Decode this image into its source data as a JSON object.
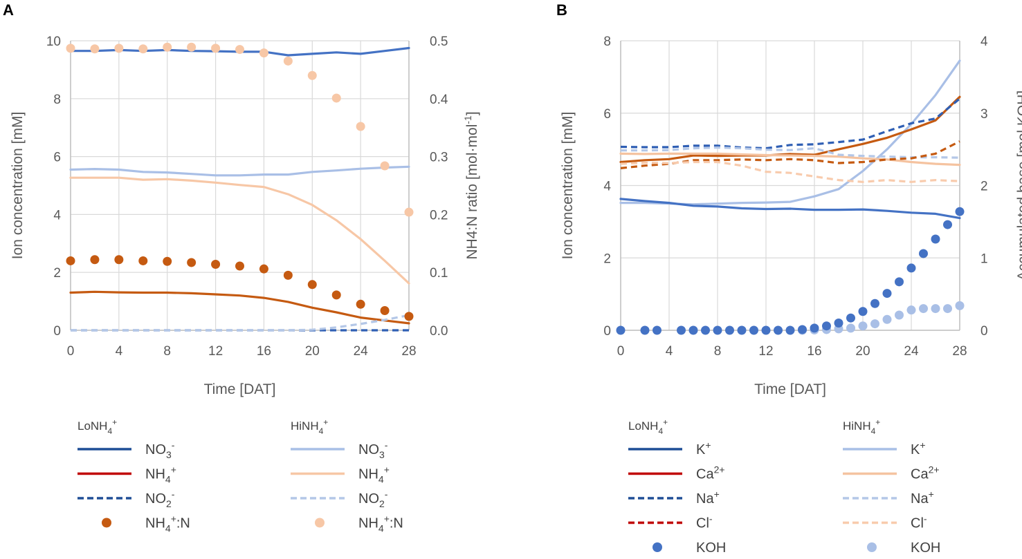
{
  "colors": {
    "lo_no3": "#4472C4",
    "hi_no3": "#A9BFE6",
    "lo_nh4": "#C55A11",
    "hi_nh4": "#F7C7A6",
    "lo_k": "#4472C4",
    "hi_k": "#A9BFE6",
    "lo_ca": "#C55A11",
    "hi_ca": "#F5C3A0",
    "lo_na": "#2F5FB4",
    "hi_na": "#B4C7E7",
    "lo_cl": "#C55A11",
    "hi_cl": "#F8CBAD",
    "leg_lo_no3": "#1F4E96",
    "leg_lo_nh4": "#C00000",
    "leg_lo_no2": "#1F4E96",
    "leg_lo_ratio": "#C55A11",
    "leg_lo_k": "#1F4E96",
    "leg_lo_ca": "#C00000",
    "leg_lo_na": "#1F4E96",
    "leg_lo_cl": "#C00000",
    "leg_lo_koh": "#4472C4",
    "grid": "#D9D9D9",
    "axis": "#BFBFBF"
  },
  "chart_data": [
    {
      "panel": "A",
      "type": "line",
      "xlabel": "Time [DAT]",
      "ylabel": "Ion concentration [mM]",
      "y2label_main": "NH4:N ratio [mol·mol",
      "y2label_sup": "-1",
      "y2label_end": "]",
      "xlim": [
        0,
        28
      ],
      "ylim": [
        0,
        10
      ],
      "y2lim": [
        0,
        0.5
      ],
      "xticks": [
        "0",
        "4",
        "8",
        "12",
        "16",
        "20",
        "24",
        "28"
      ],
      "yticks": [
        "0",
        "2",
        "4",
        "6",
        "8",
        "10"
      ],
      "y2ticks": [
        "0.0",
        "0.1",
        "0.2",
        "0.3",
        "0.4",
        "0.5"
      ],
      "series": [
        {
          "name": "LoNH4+ NO3-",
          "axis": "y",
          "style": "solid",
          "color_key": "lo_no3",
          "x": [
            0,
            2,
            4,
            6,
            8,
            10,
            12,
            14,
            16,
            18,
            20,
            22,
            24,
            26,
            28
          ],
          "y": [
            9.65,
            9.65,
            9.68,
            9.65,
            9.68,
            9.65,
            9.64,
            9.62,
            9.62,
            9.5,
            9.55,
            9.6,
            9.55,
            9.65,
            9.75
          ]
        },
        {
          "name": "HiNH4+ NO3-",
          "axis": "y",
          "style": "solid",
          "color_key": "hi_no3",
          "x": [
            0,
            2,
            4,
            6,
            8,
            10,
            12,
            14,
            16,
            18,
            20,
            22,
            24,
            26,
            28
          ],
          "y": [
            5.55,
            5.57,
            5.55,
            5.47,
            5.45,
            5.4,
            5.35,
            5.35,
            5.38,
            5.38,
            5.47,
            5.52,
            5.58,
            5.62,
            5.65
          ]
        },
        {
          "name": "HiNH4+ NH4+",
          "axis": "y",
          "style": "solid",
          "color_key": "hi_nh4",
          "x": [
            0,
            2,
            4,
            6,
            8,
            10,
            12,
            14,
            16,
            18,
            20,
            22,
            24,
            26,
            28
          ],
          "y": [
            5.27,
            5.27,
            5.27,
            5.2,
            5.22,
            5.17,
            5.1,
            5.02,
            4.95,
            4.7,
            4.33,
            3.8,
            3.15,
            2.4,
            1.62
          ]
        },
        {
          "name": "LoNH4+ NH4+",
          "axis": "y",
          "style": "solid",
          "color_key": "lo_nh4",
          "x": [
            0,
            2,
            4,
            6,
            8,
            10,
            12,
            14,
            16,
            18,
            20,
            22,
            24,
            26,
            28
          ],
          "y": [
            1.3,
            1.33,
            1.31,
            1.3,
            1.3,
            1.28,
            1.24,
            1.2,
            1.12,
            0.98,
            0.78,
            0.62,
            0.44,
            0.34,
            0.24
          ]
        },
        {
          "name": "LoNH4+ NO2-",
          "axis": "y",
          "style": "dashed",
          "color_key": "lo_na",
          "x": [
            0,
            4,
            8,
            12,
            16,
            20,
            24,
            28
          ],
          "y": [
            0,
            0,
            0,
            0,
            0,
            0,
            0,
            0
          ]
        },
        {
          "name": "HiNH4+ NO2-",
          "axis": "y",
          "style": "dashed",
          "color_key": "hi_na",
          "x": [
            0,
            4,
            8,
            12,
            16,
            18,
            20,
            22,
            24,
            26,
            28
          ],
          "y": [
            0,
            0,
            0,
            0,
            0,
            0,
            0.02,
            0.1,
            0.22,
            0.36,
            0.52
          ]
        },
        {
          "name": "HiNH4+ NH4+:N",
          "axis": "y2",
          "style": "dots",
          "color_key": "hi_nh4",
          "x": [
            0,
            2,
            4,
            6,
            8,
            10,
            12,
            14,
            16,
            18,
            20,
            22,
            24,
            26,
            28
          ],
          "y": [
            0.487,
            0.486,
            0.487,
            0.486,
            0.489,
            0.489,
            0.487,
            0.485,
            0.479,
            0.465,
            0.44,
            0.401,
            0.352,
            0.284,
            0.204
          ]
        },
        {
          "name": "LoNH4+ NH4+:N",
          "axis": "y2",
          "style": "dots",
          "color_key": "lo_ratio",
          "x": [
            0,
            2,
            4,
            6,
            8,
            10,
            12,
            14,
            16,
            18,
            20,
            22,
            24,
            26,
            28
          ],
          "y": [
            0.12,
            0.122,
            0.122,
            0.12,
            0.119,
            0.117,
            0.114,
            0.111,
            0.106,
            0.095,
            0.079,
            0.061,
            0.045,
            0.034,
            0.024
          ]
        }
      ]
    },
    {
      "panel": "B",
      "type": "line",
      "xlabel": "Time [DAT]",
      "ylabel": "Ion concentration [mM]",
      "y2label": "Accumulated base [mol KOH]",
      "xlim": [
        0,
        28
      ],
      "ylim": [
        0,
        8
      ],
      "y2lim": [
        0,
        4
      ],
      "xticks": [
        "0",
        "4",
        "8",
        "12",
        "16",
        "20",
        "24",
        "28"
      ],
      "yticks": [
        "0",
        "2",
        "4",
        "6",
        "8"
      ],
      "y2ticks": [
        "0",
        "1",
        "2",
        "3",
        "4"
      ],
      "series": [
        {
          "name": "HiNH4+ K+",
          "axis": "y",
          "style": "solid",
          "color_key": "hi_k",
          "x": [
            0,
            2,
            4,
            6,
            8,
            10,
            12,
            14,
            16,
            18,
            20,
            22,
            24,
            26,
            28
          ],
          "y": [
            3.52,
            3.52,
            3.5,
            3.48,
            3.5,
            3.52,
            3.53,
            3.55,
            3.7,
            3.9,
            4.4,
            5.0,
            5.7,
            6.5,
            7.45
          ]
        },
        {
          "name": "LoNH4+ K+",
          "axis": "y",
          "style": "solid",
          "color_key": "lo_k",
          "x": [
            0,
            2,
            4,
            6,
            8,
            10,
            12,
            14,
            16,
            18,
            20,
            22,
            24,
            26,
            28
          ],
          "y": [
            3.63,
            3.57,
            3.52,
            3.44,
            3.42,
            3.37,
            3.35,
            3.36,
            3.33,
            3.33,
            3.34,
            3.3,
            3.25,
            3.22,
            3.1
          ]
        },
        {
          "name": "LoNH4+ Ca2+",
          "axis": "y",
          "style": "solid",
          "color_key": "lo_ca",
          "x": [
            0,
            2,
            4,
            6,
            8,
            10,
            12,
            14,
            16,
            18,
            20,
            22,
            24,
            26,
            28
          ],
          "y": [
            4.65,
            4.7,
            4.73,
            4.83,
            4.82,
            4.83,
            4.83,
            4.87,
            4.85,
            5.0,
            5.15,
            5.32,
            5.55,
            5.8,
            6.45
          ]
        },
        {
          "name": "HiNH4+ Ca2+",
          "axis": "y",
          "style": "solid",
          "color_key": "hi_ca",
          "x": [
            0,
            2,
            4,
            6,
            8,
            10,
            12,
            14,
            16,
            18,
            20,
            22,
            24,
            26,
            28
          ],
          "y": [
            4.88,
            4.87,
            4.88,
            4.88,
            4.88,
            4.86,
            4.84,
            4.83,
            4.82,
            4.8,
            4.75,
            4.72,
            4.65,
            4.6,
            4.57
          ]
        },
        {
          "name": "LoNH4+ Na+",
          "axis": "y",
          "style": "dashed",
          "color_key": "lo_na",
          "x": [
            0,
            2,
            4,
            6,
            8,
            10,
            12,
            14,
            16,
            18,
            20,
            22,
            24,
            26,
            28
          ],
          "y": [
            5.07,
            5.06,
            5.06,
            5.1,
            5.1,
            5.05,
            5.03,
            5.12,
            5.14,
            5.2,
            5.27,
            5.5,
            5.72,
            5.85,
            6.4
          ]
        },
        {
          "name": "HiNH4+ Na+",
          "axis": "y",
          "style": "dashed",
          "color_key": "hi_na",
          "x": [
            0,
            2,
            4,
            6,
            8,
            10,
            12,
            14,
            16,
            18,
            20,
            22,
            24,
            26,
            28
          ],
          "y": [
            4.97,
            4.97,
            4.98,
            5.03,
            5.05,
            5.03,
            4.99,
            4.98,
            5.03,
            4.85,
            4.82,
            4.8,
            4.78,
            4.78,
            4.77
          ]
        },
        {
          "name": "LoNH4+ Cl-",
          "axis": "y",
          "style": "dashed",
          "color_key": "lo_cl",
          "x": [
            0,
            2,
            4,
            6,
            8,
            10,
            12,
            14,
            16,
            18,
            20,
            22,
            24,
            26,
            28
          ],
          "y": [
            4.48,
            4.55,
            4.6,
            4.7,
            4.7,
            4.72,
            4.7,
            4.73,
            4.7,
            4.62,
            4.65,
            4.72,
            4.75,
            4.88,
            5.22
          ]
        },
        {
          "name": "HiNH4+ Cl-",
          "axis": "y",
          "style": "dashed",
          "color_key": "hi_cl",
          "x": [
            0,
            2,
            4,
            6,
            8,
            10,
            12,
            14,
            16,
            18,
            20,
            22,
            24,
            26,
            28
          ],
          "y": [
            4.6,
            4.63,
            4.62,
            4.65,
            4.65,
            4.55,
            4.38,
            4.35,
            4.25,
            4.15,
            4.1,
            4.15,
            4.1,
            4.15,
            4.12
          ]
        },
        {
          "name": "HiNH4+ KOH",
          "axis": "y2",
          "style": "dots",
          "color_key": "hi_k",
          "x": [
            15,
            16,
            17,
            18,
            19,
            20,
            21,
            22,
            23,
            24,
            25,
            26,
            27,
            28
          ],
          "y": [
            0,
            0.005,
            0.01,
            0.02,
            0.03,
            0.06,
            0.09,
            0.15,
            0.21,
            0.28,
            0.3,
            0.3,
            0.3,
            0.34
          ]
        },
        {
          "name": "LoNH4+ KOH",
          "axis": "y2",
          "style": "dots",
          "color_key": "lo_k",
          "x": [
            0,
            2,
            3,
            5,
            6,
            7,
            8,
            9,
            10,
            11,
            12,
            13,
            14,
            15,
            16,
            17,
            18,
            19,
            20,
            21,
            22,
            23,
            24,
            25,
            26,
            27,
            28
          ],
          "y": [
            0,
            0,
            0,
            0,
            0,
            0,
            0,
            0,
            0,
            0,
            0,
            0,
            0,
            0.01,
            0.03,
            0.06,
            0.1,
            0.17,
            0.26,
            0.37,
            0.51,
            0.67,
            0.86,
            1.06,
            1.26,
            1.46,
            1.64
          ]
        }
      ]
    }
  ],
  "legend_A": {
    "lo_header": "LoNH",
    "hi_header": "HiNH",
    "sub4": "4",
    "supplus": "+",
    "items_lo": [
      {
        "base": "NO",
        "sub": "3",
        "sup": "-",
        "style": "solid",
        "color_key": "leg_lo_no3"
      },
      {
        "base": "NH",
        "sub": "4",
        "sup": "+",
        "style": "solid",
        "color_key": "leg_lo_nh4"
      },
      {
        "base": "NO",
        "sub": "2",
        "sup": "-",
        "style": "dashed",
        "color_key": "leg_lo_no2"
      },
      {
        "base": "NH",
        "sub": "4",
        "sup": "+",
        "tail": ":N",
        "style": "dot",
        "color_key": "leg_lo_ratio"
      }
    ],
    "items_hi": [
      {
        "base": "NO",
        "sub": "3",
        "sup": "-",
        "style": "solid",
        "color_key": "hi_no3"
      },
      {
        "base": "NH",
        "sub": "4",
        "sup": "+",
        "style": "solid",
        "color_key": "hi_nh4"
      },
      {
        "base": "NO",
        "sub": "2",
        "sup": "-",
        "style": "dashed",
        "color_key": "hi_na"
      },
      {
        "base": "NH",
        "sub": "4",
        "sup": "+",
        "tail": ":N",
        "style": "dot",
        "color_key": "hi_nh4"
      }
    ]
  },
  "legend_B": {
    "lo_header": "LoNH",
    "hi_header": "HiNH",
    "sub4": "4",
    "supplus": "+",
    "items_lo": [
      {
        "base": "K",
        "sup": "+",
        "style": "solid",
        "color_key": "leg_lo_k"
      },
      {
        "base": "Ca",
        "sup": "2+",
        "style": "solid",
        "color_key": "leg_lo_ca"
      },
      {
        "base": "Na",
        "sup": "+",
        "style": "dashed",
        "color_key": "leg_lo_na"
      },
      {
        "base": "Cl",
        "sup": "-",
        "style": "dashed",
        "color_key": "leg_lo_cl"
      },
      {
        "base": "KOH",
        "style": "dot",
        "color_key": "leg_lo_koh"
      }
    ],
    "items_hi": [
      {
        "base": "K",
        "sup": "+",
        "style": "solid",
        "color_key": "hi_k"
      },
      {
        "base": "Ca",
        "sup": "2+",
        "style": "solid",
        "color_key": "hi_ca"
      },
      {
        "base": "Na",
        "sup": "+",
        "style": "dashed",
        "color_key": "hi_na"
      },
      {
        "base": "Cl",
        "sup": "-",
        "style": "dashed",
        "color_key": "hi_cl"
      },
      {
        "base": "KOH",
        "style": "dot",
        "color_key": "hi_k"
      }
    ]
  },
  "panel_labels": {
    "a": "A",
    "b": "B"
  }
}
